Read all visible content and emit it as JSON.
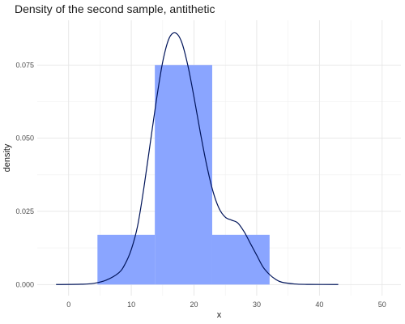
{
  "chart_data": {
    "type": "histogram_with_density",
    "title": "Density of the second sample, antithetic",
    "xlabel": "x",
    "ylabel": "density",
    "xlim": [
      -5,
      53
    ],
    "ylim": [
      -0.0038,
      0.0903
    ],
    "x_ticks": [
      0,
      10,
      20,
      30,
      40,
      50
    ],
    "y_ticks": [
      0.0,
      0.025,
      0.05,
      0.075
    ],
    "y_tick_labels": [
      "0.000",
      "0.025",
      "0.050",
      "0.075"
    ],
    "grid": true,
    "histogram": {
      "color": "#8aa5ff",
      "bins": [
        {
          "x0": 4.6,
          "x1": 13.75,
          "density": 0.017
        },
        {
          "x0": 13.75,
          "x1": 22.9,
          "density": 0.075
        },
        {
          "x0": 22.9,
          "x1": 32.05,
          "density": 0.017
        }
      ]
    },
    "density_curve": {
      "color": "#00145a",
      "points": [
        [
          -2,
          0
        ],
        [
          2,
          0.0001
        ],
        [
          4,
          0.0004
        ],
        [
          6,
          0.0015
        ],
        [
          8,
          0.004
        ],
        [
          9,
          0.007
        ],
        [
          10,
          0.012
        ],
        [
          11,
          0.02
        ],
        [
          12,
          0.033
        ],
        [
          13,
          0.048
        ],
        [
          14,
          0.063
        ],
        [
          15,
          0.076
        ],
        [
          16,
          0.084
        ],
        [
          17,
          0.086
        ],
        [
          18,
          0.083
        ],
        [
          19,
          0.075
        ],
        [
          20,
          0.064
        ],
        [
          21,
          0.052
        ],
        [
          22,
          0.041
        ],
        [
          23,
          0.032
        ],
        [
          24,
          0.026
        ],
        [
          25,
          0.023
        ],
        [
          26,
          0.022
        ],
        [
          27,
          0.021
        ],
        [
          28,
          0.018
        ],
        [
          29,
          0.014
        ],
        [
          30,
          0.01
        ],
        [
          31,
          0.006
        ],
        [
          32,
          0.0035
        ],
        [
          33,
          0.0018
        ],
        [
          34,
          0.0008
        ],
        [
          36,
          0.0002
        ],
        [
          38,
          5e-05
        ],
        [
          43,
          0
        ]
      ]
    }
  }
}
